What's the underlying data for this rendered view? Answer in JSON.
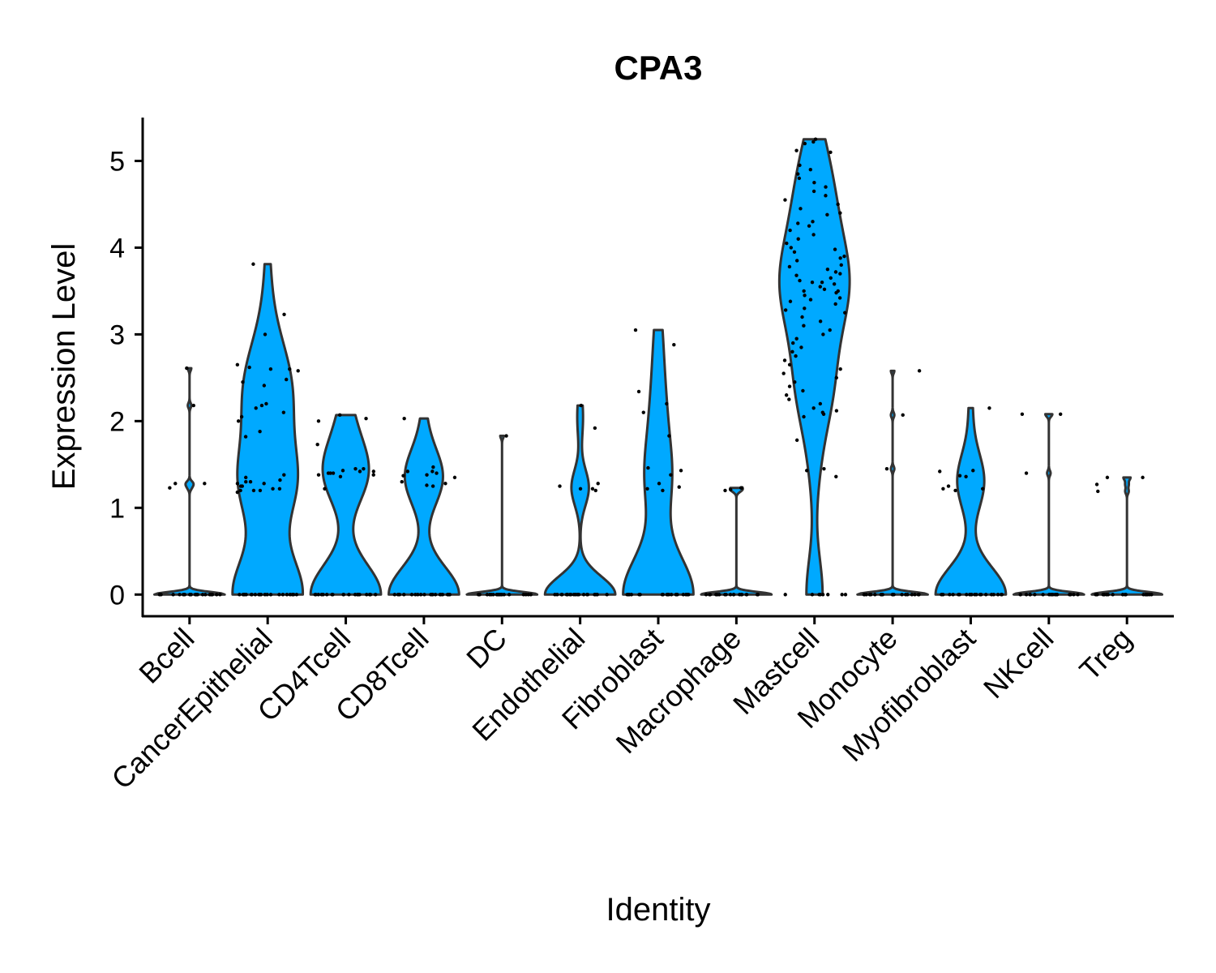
{
  "chart_data": {
    "type": "violin",
    "title": "CPA3",
    "x_label": "Identity",
    "y_label": "Expression Level",
    "categories": [
      "Bcell",
      "CancerEpithelial",
      "CD4Tcell",
      "CD8Tcell",
      "DC",
      "Endothelial",
      "Fibroblast",
      "Macrophage",
      "Mastcell",
      "Monocyte",
      "Myofibroblast",
      "NKcell",
      "Treg"
    ],
    "color": "#00A9FF",
    "ylim": [
      -0.25,
      5.5
    ],
    "yticks": [
      0,
      1,
      2,
      3,
      4,
      5
    ],
    "points": [
      [
        1.23,
        1.28,
        2.18,
        2.61,
        1.28,
        0,
        0,
        0,
        0,
        0,
        0,
        0,
        0,
        0,
        0,
        0,
        0,
        0,
        0,
        0,
        0,
        0,
        0,
        0,
        0
      ],
      [
        3.81,
        2.58,
        2.45,
        2.41,
        2.48,
        2.18,
        2.15,
        1.82,
        1.88,
        3.0,
        2.65,
        2.62,
        2.6,
        2.6,
        3.23,
        2.0,
        2.05,
        2.1,
        2.2,
        1.3,
        1.25,
        1.2,
        1.28,
        1.22,
        1.3,
        1.38,
        1.32,
        1.2,
        1.25,
        1.22,
        1.28,
        1.18,
        1.35,
        1.2,
        0,
        0,
        0,
        0,
        0,
        0,
        0,
        0,
        0,
        0,
        0,
        0,
        0,
        0,
        0,
        0,
        0,
        0,
        0,
        0
      ],
      [
        1.73,
        1.45,
        1.4,
        1.22,
        1.38,
        1.42,
        1.4,
        1.45,
        1.42,
        1.38,
        1.36,
        2.0,
        2.03,
        2.07,
        1.43,
        1.4,
        0,
        0,
        0,
        0,
        0,
        0,
        0,
        0,
        0,
        0,
        0,
        0,
        0,
        0,
        0,
        0,
        0,
        0,
        0,
        0
      ],
      [
        1.25,
        1.3,
        1.37,
        1.35,
        1.4,
        1.28,
        1.42,
        1.26,
        1.47,
        1.42,
        1.38,
        2.03,
        0,
        0,
        0,
        0,
        0,
        0,
        0,
        0,
        0,
        0,
        0,
        0,
        0,
        0,
        0,
        0,
        0,
        0,
        0,
        0
      ],
      [
        1.83,
        0,
        0,
        0,
        0,
        0,
        0,
        0,
        0,
        0,
        0,
        0,
        0,
        0,
        0,
        0,
        0,
        0,
        0,
        0,
        0
      ],
      [
        1.92,
        1.25,
        1.22,
        1.28,
        1.22,
        1.2,
        2.18,
        0,
        0,
        0,
        0,
        0,
        0,
        0,
        0,
        0,
        0,
        0,
        0,
        0,
        0,
        0,
        0,
        0,
        0,
        0,
        0
      ],
      [
        1.38,
        1.43,
        1.24,
        1.2,
        1.22,
        1.28,
        1.83,
        2.1,
        2.34,
        2.2,
        1.46,
        2.88,
        3.05,
        0,
        0,
        0,
        0,
        0,
        0,
        0,
        0,
        0,
        0,
        0,
        0,
        0,
        0,
        0,
        0,
        0,
        0,
        0,
        0
      ],
      [
        1.21,
        1.2,
        1.23,
        1.23,
        0,
        0,
        0,
        0,
        0,
        0,
        0,
        0,
        0,
        0,
        0,
        0,
        0,
        0,
        0,
        0,
        0,
        0,
        0,
        0
      ],
      [
        5.25,
        5.22,
        5.2,
        5.12,
        5.1,
        4.95,
        4.9,
        4.85,
        4.8,
        4.75,
        4.7,
        4.65,
        4.6,
        4.55,
        4.5,
        4.45,
        4.4,
        4.38,
        4.3,
        4.28,
        4.25,
        4.2,
        4.15,
        4.1,
        4.05,
        4.0,
        3.98,
        3.95,
        3.9,
        3.88,
        3.85,
        3.8,
        3.78,
        3.75,
        3.72,
        3.7,
        3.68,
        3.65,
        3.62,
        3.6,
        3.6,
        3.58,
        3.55,
        3.52,
        3.5,
        3.5,
        3.48,
        3.45,
        3.42,
        3.4,
        3.38,
        3.35,
        3.3,
        3.28,
        3.25,
        3.2,
        3.15,
        3.1,
        3.05,
        3.0,
        2.95,
        2.9,
        2.85,
        2.8,
        2.75,
        2.7,
        2.65,
        2.6,
        2.55,
        2.5,
        2.45,
        2.4,
        2.35,
        2.3,
        2.25,
        2.2,
        2.15,
        2.12,
        2.1,
        2.08,
        2.05,
        1.78,
        1.45,
        1.43,
        1.36,
        0,
        0,
        0,
        0,
        0,
        0,
        0,
        0
      ],
      [
        2.58,
        2.07,
        1.45,
        0,
        0,
        0,
        0,
        0,
        0,
        0,
        0,
        0,
        0,
        0,
        0,
        0,
        0,
        0,
        0,
        0,
        0,
        0,
        0
      ],
      [
        1.36,
        1.37,
        1.22,
        1.22,
        1.42,
        1.43,
        1.2,
        2.15,
        1.25,
        0,
        0,
        0,
        0,
        0,
        0,
        0,
        0,
        0,
        0,
        0,
        0,
        0,
        0,
        0,
        0,
        0,
        0,
        0,
        0
      ],
      [
        2.08,
        1.4,
        2.08,
        0,
        0,
        0,
        0,
        0,
        0,
        0,
        0,
        0,
        0,
        0,
        0,
        0,
        0,
        0,
        0,
        0,
        0,
        0,
        0
      ],
      [
        1.19,
        1.35,
        1.27,
        1.35,
        0,
        0,
        0,
        0,
        0,
        0,
        0,
        0,
        0,
        0,
        0,
        0,
        0,
        0,
        0,
        0,
        0,
        0,
        0,
        0
      ]
    ]
  }
}
